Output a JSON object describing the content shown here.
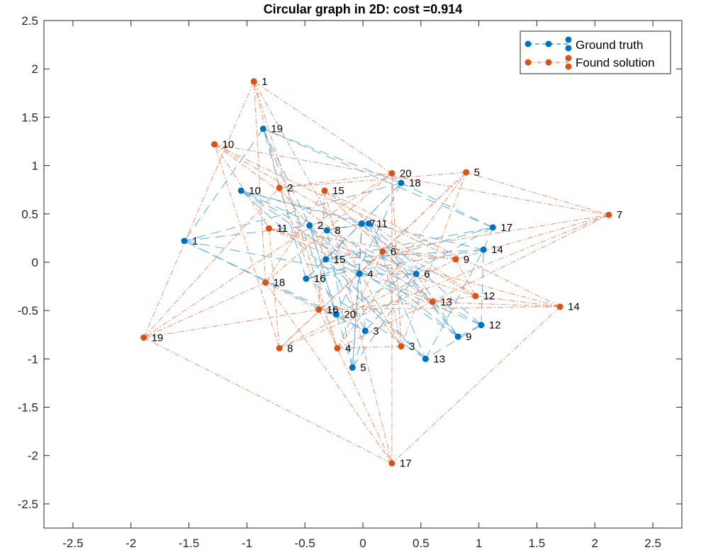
{
  "chart_data": {
    "type": "scatter",
    "title": "Circular graph in 2D: cost =0.914",
    "xlabel": "",
    "ylabel": "",
    "xlim": [
      -2.75,
      2.75
    ],
    "ylim": [
      -2.75,
      2.5
    ],
    "xticks": [
      -2.5,
      -2,
      -1.5,
      -1,
      -0.5,
      0,
      0.5,
      1,
      1.5,
      2,
      2.5
    ],
    "yticks": [
      -2.5,
      -2,
      -1.5,
      -1,
      -0.5,
      0,
      0.5,
      1,
      1.5,
      2,
      2.5
    ],
    "grid": false,
    "legend_position": "top-right",
    "series": [
      {
        "name": "Ground truth",
        "color": "#0072BD",
        "line_style": "dashed",
        "labels": [
          "1",
          "2",
          "3",
          "4",
          "5",
          "6",
          "7",
          "8",
          "9",
          "10",
          "11",
          "12",
          "13",
          "14",
          "15",
          "16",
          "17",
          "18",
          "19",
          "20"
        ],
        "x": [
          -1.54,
          -0.46,
          0.02,
          -0.03,
          -0.09,
          0.46,
          -0.01,
          -0.31,
          0.82,
          -1.05,
          0.05,
          1.02,
          0.54,
          1.04,
          -0.32,
          -0.49,
          1.12,
          0.33,
          -0.86,
          -0.23
        ],
        "y": [
          0.22,
          0.38,
          -0.71,
          -0.12,
          -1.09,
          -0.12,
          0.4,
          0.33,
          -0.77,
          0.74,
          0.4,
          -0.65,
          -1.0,
          0.13,
          0.03,
          -0.17,
          0.36,
          0.82,
          1.38,
          -0.54
        ]
      },
      {
        "name": "Found solution",
        "color": "#D95319",
        "line_style": "dashdot",
        "labels": [
          "1",
          "2",
          "3",
          "4",
          "5",
          "6",
          "7",
          "8",
          "9",
          "10",
          "11",
          "12",
          "13",
          "14",
          "15",
          "16",
          "17",
          "18",
          "19",
          "20"
        ],
        "x": [
          -0.94,
          -0.72,
          0.33,
          -0.22,
          0.89,
          0.17,
          2.12,
          -0.72,
          0.8,
          -1.28,
          -0.81,
          0.97,
          0.6,
          1.7,
          -0.33,
          -0.38,
          0.25,
          -0.84,
          -1.89,
          0.25
        ],
        "y": [
          1.87,
          0.77,
          -0.87,
          -0.89,
          0.93,
          0.11,
          0.49,
          -0.89,
          0.03,
          1.22,
          0.35,
          -0.35,
          -0.41,
          -0.46,
          0.74,
          -0.49,
          -2.08,
          -0.21,
          -0.78,
          0.92
        ]
      }
    ]
  }
}
